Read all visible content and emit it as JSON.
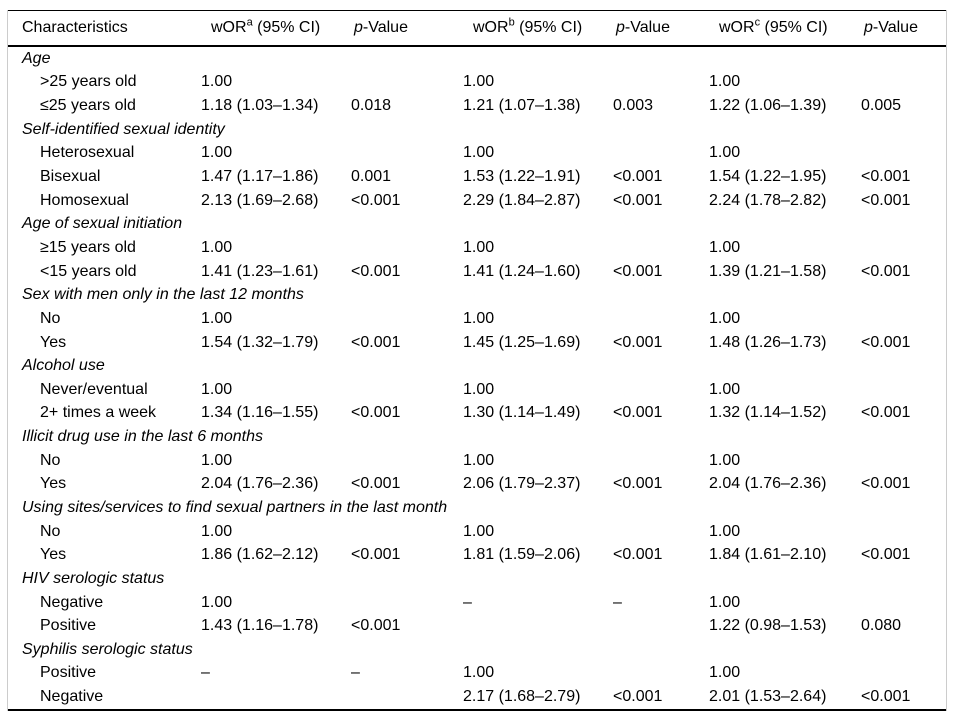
{
  "table": {
    "headers": [
      {
        "kind": "plain",
        "text": "Characteristics"
      },
      {
        "kind": "wor",
        "pre": "wOR",
        "sup": "a",
        "post": " (95% CI)"
      },
      {
        "kind": "pvalue",
        "italic": "p",
        "post": "-Value"
      },
      {
        "kind": "wor",
        "pre": "wOR",
        "sup": "b",
        "post": " (95% CI)"
      },
      {
        "kind": "pvalue",
        "italic": "p",
        "post": "-Value"
      },
      {
        "kind": "wor",
        "pre": "wOR",
        "sup": "c",
        "post": " (95% CI)"
      },
      {
        "kind": "pvalue",
        "italic": "p",
        "post": "-Value"
      }
    ],
    "sections": [
      {
        "title": "Age",
        "rows": [
          {
            "label": ">25 years old",
            "values": [
              "1.00",
              "",
              "1.00",
              "",
              "1.00",
              ""
            ]
          },
          {
            "label": "≤25 years old",
            "values": [
              "1.18 (1.03–1.34)",
              "0.018",
              "1.21 (1.07–1.38)",
              "0.003",
              "1.22 (1.06–1.39)",
              "0.005"
            ]
          }
        ]
      },
      {
        "title": "Self-identified sexual identity",
        "rows": [
          {
            "label": "Heterosexual",
            "values": [
              "1.00",
              "",
              "1.00",
              "",
              "1.00",
              ""
            ]
          },
          {
            "label": "Bisexual",
            "values": [
              "1.47 (1.17–1.86)",
              "0.001",
              "1.53 (1.22–1.91)",
              "<0.001",
              "1.54 (1.22–1.95)",
              "<0.001"
            ]
          },
          {
            "label": "Homosexual",
            "values": [
              "2.13 (1.69–2.68)",
              "<0.001",
              "2.29 (1.84–2.87)",
              "<0.001",
              "2.24 (1.78–2.82)",
              "<0.001"
            ]
          }
        ]
      },
      {
        "title": "Age of sexual initiation",
        "rows": [
          {
            "label": "≥15 years old",
            "values": [
              "1.00",
              "",
              "1.00",
              "",
              "1.00",
              ""
            ]
          },
          {
            "label": "<15 years old",
            "values": [
              "1.41 (1.23–1.61)",
              "<0.001",
              "1.41 (1.24–1.60)",
              "<0.001",
              "1.39 (1.21–1.58)",
              "<0.001"
            ]
          }
        ]
      },
      {
        "title": "Sex with men only in the last 12 months",
        "rows": [
          {
            "label": "No",
            "values": [
              "1.00",
              "",
              "1.00",
              "",
              "1.00",
              ""
            ]
          },
          {
            "label": "Yes",
            "values": [
              "1.54 (1.32–1.79)",
              "<0.001",
              "1.45 (1.25–1.69)",
              "<0.001",
              "1.48 (1.26–1.73)",
              "<0.001"
            ]
          }
        ]
      },
      {
        "title": "Alcohol use",
        "rows": [
          {
            "label": "Never/eventual",
            "values": [
              "1.00",
              "",
              "1.00",
              "",
              "1.00",
              ""
            ]
          },
          {
            "label": "2+ times a week",
            "values": [
              "1.34 (1.16–1.55)",
              "<0.001",
              "1.30 (1.14–1.49)",
              "<0.001",
              "1.32 (1.14–1.52)",
              "<0.001"
            ]
          }
        ]
      },
      {
        "title": "Illicit drug use in the last 6 months",
        "rows": [
          {
            "label": "No",
            "values": [
              "1.00",
              "",
              "1.00",
              "",
              "1.00",
              ""
            ]
          },
          {
            "label": "Yes",
            "values": [
              "2.04 (1.76–2.36)",
              "<0.001",
              "2.06 (1.79–2.37)",
              "<0.001",
              "2.04 (1.76–2.36)",
              "<0.001"
            ]
          }
        ]
      },
      {
        "title": "Using sites/services to find sexual partners in the last month",
        "rows": [
          {
            "label": "No",
            "values": [
              "1.00",
              "",
              "1.00",
              "",
              "1.00",
              ""
            ]
          },
          {
            "label": "Yes",
            "values": [
              "1.86 (1.62–2.12)",
              "<0.001",
              "1.81 (1.59–2.06)",
              "<0.001",
              "1.84 (1.61–2.10)",
              "<0.001"
            ]
          }
        ]
      },
      {
        "title": "HIV serologic status",
        "rows": [
          {
            "label": "Negative",
            "values": [
              "1.00",
              "",
              "–",
              "–",
              "1.00",
              ""
            ]
          },
          {
            "label": "Positive",
            "values": [
              "1.43 (1.16–1.78)",
              "<0.001",
              "",
              "",
              "1.22 (0.98–1.53)",
              "0.080"
            ]
          }
        ]
      },
      {
        "title": "Syphilis serologic status",
        "rows": [
          {
            "label": "Positive",
            "values": [
              "–",
              "–",
              "1.00",
              "",
              "1.00",
              ""
            ]
          },
          {
            "label": "Negative",
            "values": [
              "",
              "",
              "2.17 (1.68–2.79)",
              "<0.001",
              "2.01 (1.53–2.64)",
              "<0.001"
            ]
          }
        ]
      }
    ]
  },
  "colors": {
    "rule": "#000000",
    "side_border": "#cccccc",
    "text": "#000000",
    "background": "#ffffff"
  }
}
